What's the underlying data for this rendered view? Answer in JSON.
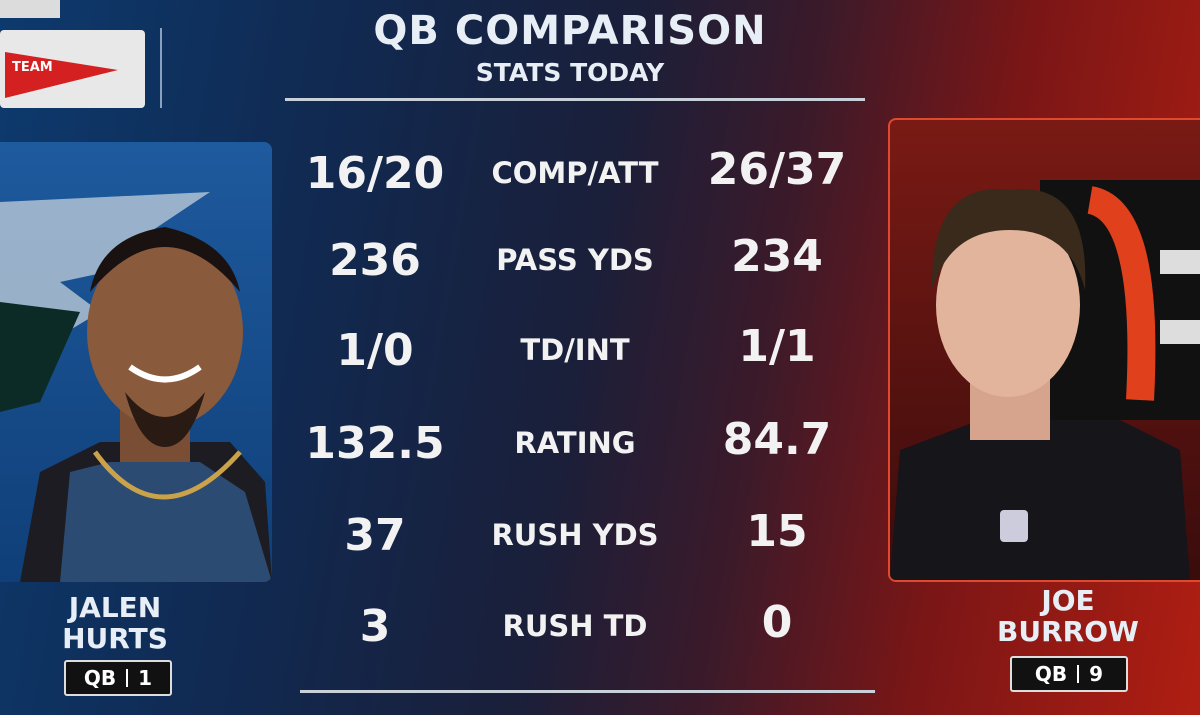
{
  "header": {
    "title": "QB COMPARISON",
    "subtitle": "STATS TODAY",
    "network_logo": "TEAM"
  },
  "players": [
    {
      "first_name": "JALEN",
      "last_name": "HURTS",
      "position": "QB",
      "number": "1"
    },
    {
      "first_name": "JOE",
      "last_name": "BURROW",
      "position": "QB",
      "number": "9"
    }
  ],
  "stats": [
    {
      "label": "COMP/ATT",
      "left": "16/20",
      "right": "26/37"
    },
    {
      "label": "PASS YDS",
      "left": "236",
      "right": "234"
    },
    {
      "label": "TD/INT",
      "left": "1/0",
      "right": "1/1"
    },
    {
      "label": "RATING",
      "left": "132.5",
      "right": "84.7"
    },
    {
      "label": "RUSH YDS",
      "left": "37",
      "right": "15"
    },
    {
      "label": "RUSH TD",
      "left": "3",
      "right": "0"
    }
  ]
}
